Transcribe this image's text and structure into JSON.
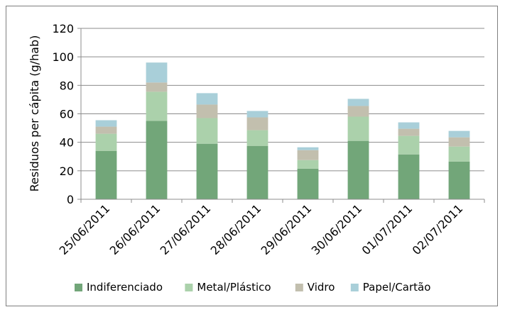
{
  "chart_data": {
    "type": "bar",
    "stacked": true,
    "categories": [
      "25/06/2011",
      "26/06/2011",
      "27/06/2011",
      "28/06/2011",
      "29/06/2011",
      "30/06/2011",
      "01/07/2011",
      "02/07/2011"
    ],
    "series": [
      {
        "name": "Indiferenciado",
        "color": "#72a679",
        "values": [
          34,
          55,
          39,
          37.5,
          21.5,
          41,
          31.5,
          26.5
        ]
      },
      {
        "name": "Metal/Plástico",
        "color": "#abd1ab",
        "values": [
          12,
          20.5,
          18,
          11,
          6,
          17,
          13,
          10.5
        ]
      },
      {
        "name": "Vidro",
        "color": "#c2bfae",
        "values": [
          5,
          6.5,
          9.5,
          9,
          7,
          7.5,
          5,
          6.5
        ]
      },
      {
        "name": "Papel/Cartão",
        "color": "#a9cfd9",
        "values": [
          4.5,
          14,
          8,
          4.5,
          2,
          5,
          4.5,
          4.5
        ]
      }
    ],
    "ylabel": "Residuos per cápita (g/hab)",
    "xlabel": "",
    "ylim": [
      0,
      120
    ],
    "yticks": [
      0,
      20,
      40,
      60,
      80,
      100,
      120
    ],
    "grid": true,
    "legend_position": "bottom"
  }
}
